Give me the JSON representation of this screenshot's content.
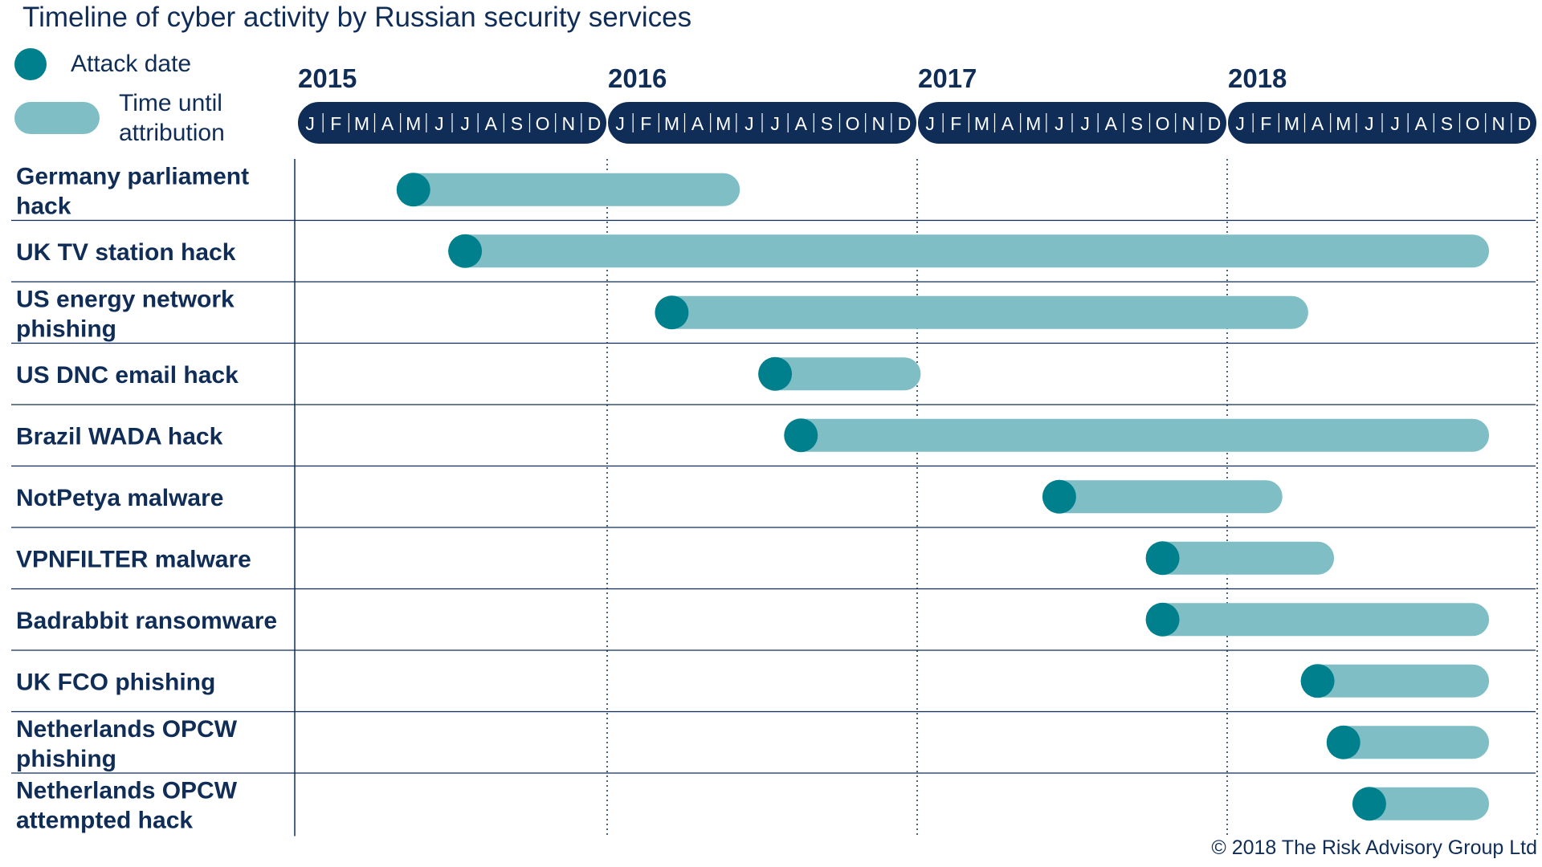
{
  "title": "Timeline of cyber activity by Russian security services",
  "legend": {
    "attack_label": "Attack date",
    "attribution_label": "Time until attribution"
  },
  "colors": {
    "text": "#0f2d57",
    "header_band": "#0f2d57",
    "attack_dot": "#00808c",
    "attribution_bar": "#7fbec5",
    "row_line": "#0f2d57"
  },
  "copyright": "© 2018 The Risk Advisory Group Ltd",
  "chart_data": {
    "type": "timeline",
    "title": "Timeline of cyber activity by Russian security services",
    "x_range": [
      "2015-01",
      "2018-12"
    ],
    "years": [
      "2015",
      "2016",
      "2017",
      "2018"
    ],
    "month_labels": [
      "J",
      "F",
      "M",
      "A",
      "M",
      "J",
      "J",
      "A",
      "S",
      "O",
      "N",
      "D"
    ],
    "legend": [
      "Attack date",
      "Time until attribution"
    ],
    "events": [
      {
        "name": "Germany parliament hack",
        "attack": "2015-05",
        "attribution": "2016-05"
      },
      {
        "name": "UK TV station hack",
        "attack": "2015-07",
        "attribution": "2018-10"
      },
      {
        "name": "US energy network phishing",
        "attack": "2016-03",
        "attribution": "2018-03"
      },
      {
        "name": "US DNC email hack",
        "attack": "2016-07",
        "attribution": "2016-12"
      },
      {
        "name": "Brazil WADA hack",
        "attack": "2016-08",
        "attribution": "2018-10"
      },
      {
        "name": "NotPetya malware",
        "attack": "2017-06",
        "attribution": "2018-02"
      },
      {
        "name": "VPNFILTER malware",
        "attack": "2017-10",
        "attribution": "2018-04"
      },
      {
        "name": "Badrabbit ransomware",
        "attack": "2017-10",
        "attribution": "2018-10"
      },
      {
        "name": "UK FCO phishing",
        "attack": "2018-04",
        "attribution": "2018-10"
      },
      {
        "name": "Netherlands OPCW phishing",
        "attack": "2018-05",
        "attribution": "2018-10"
      },
      {
        "name": "Netherlands OPCW attempted hack",
        "attack": "2018-06",
        "attribution": "2018-10"
      }
    ]
  }
}
